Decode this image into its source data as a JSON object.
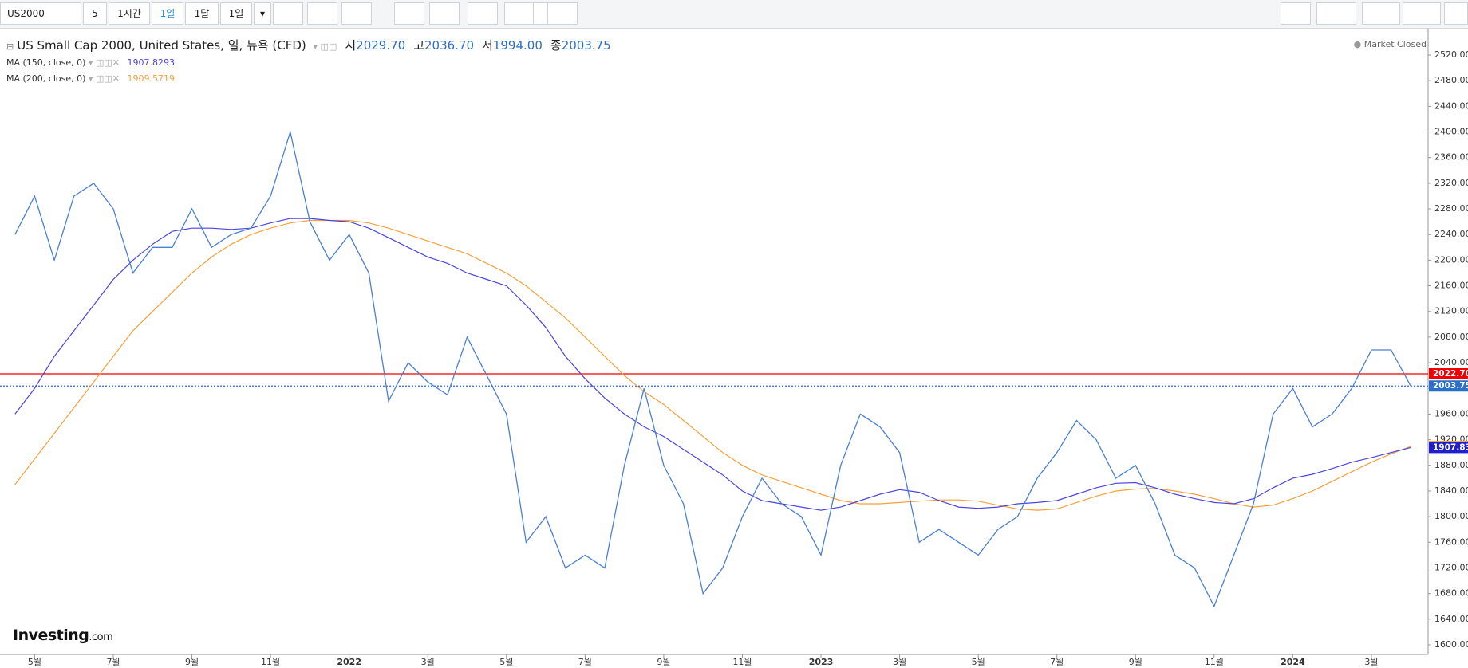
{
  "toolbar": {
    "symbol": "US2000",
    "buttons": [
      "5",
      "1시간",
      "1일",
      "1달",
      "1일"
    ],
    "selected": 2
  },
  "chart_data": {
    "type": "line",
    "ohlc": [
      {
        "label": "시",
        "value": "2029.70"
      },
      {
        "label": "고",
        "value": "2036.70"
      },
      {
        "label": "저",
        "value": "1994.00"
      },
      {
        "label": "종",
        "value": "2003.75"
      }
    ],
    "status": "Market Closed",
    "logo": {
      "name": "Investing",
      "suffix": ".com"
    },
    "categories": [
      null,
      "5월",
      null,
      null,
      null,
      "7월",
      null,
      null,
      null,
      "9월",
      null,
      null,
      null,
      "11월",
      null,
      null,
      null,
      "2022",
      null,
      null,
      null,
      "3월",
      null,
      null,
      null,
      "5월",
      null,
      null,
      null,
      "7월",
      null,
      null,
      null,
      "9월",
      null,
      null,
      null,
      "11월",
      null,
      null,
      null,
      "2023",
      null,
      null,
      null,
      "3월",
      null,
      null,
      null,
      "5월",
      null,
      null,
      null,
      "7월",
      null,
      null,
      null,
      "9월",
      null,
      null,
      null,
      "11월",
      null,
      null,
      null,
      "2024",
      null,
      null,
      null,
      "3월",
      null,
      null
    ],
    "series": [
      {
        "name": "US Small Cap 2000, United States, 일, 뉴욕 (CFD)",
        "color": "#4a7fd4",
        "values": [
          2240,
          2300,
          2200,
          2300,
          2320,
          2280,
          2180,
          2220,
          2220,
          2280,
          2220,
          2240,
          2250,
          2300,
          2400,
          2260,
          2200,
          2240,
          2180,
          1980,
          2040,
          2010,
          1990,
          2080,
          2020,
          1960,
          1760,
          1800,
          1720,
          1740,
          1720,
          1880,
          2000,
          1880,
          1820,
          1680,
          1720,
          1800,
          1860,
          1820,
          1800,
          1740,
          1880,
          1960,
          1940,
          1900,
          1760,
          1780,
          1760,
          1740,
          1780,
          1800,
          1860,
          1900,
          1950,
          1920,
          1860,
          1880,
          1820,
          1740,
          1720,
          1660,
          1740,
          1820,
          1960,
          2000,
          1940,
          1960,
          2000,
          2060,
          2060,
          2003.75
        ]
      },
      {
        "name": "MA (150, close, 0)",
        "legend_value": "1907.8293",
        "color": "#4b45e0",
        "values": [
          1960,
          2000,
          2050,
          2090,
          2130,
          2170,
          2200,
          2225,
          2245,
          2250,
          2250,
          2248,
          2250,
          2258,
          2265,
          2265,
          2262,
          2260,
          2250,
          2235,
          2220,
          2205,
          2195,
          2180,
          2170,
          2160,
          2130,
          2095,
          2050,
          2015,
          1985,
          1960,
          1940,
          1925,
          1905,
          1885,
          1865,
          1840,
          1825,
          1820,
          1815,
          1810,
          1815,
          1825,
          1835,
          1842,
          1838,
          1825,
          1815,
          1813,
          1815,
          1820,
          1822,
          1825,
          1835,
          1845,
          1852,
          1853,
          1845,
          1835,
          1828,
          1822,
          1820,
          1828,
          1845,
          1860,
          1866,
          1875,
          1885,
          1892,
          1900,
          1907.83
        ]
      },
      {
        "name": "MA (200, close, 0)",
        "legend_value": "1909.5719",
        "color": "#f5a23a",
        "values": [
          1850,
          1890,
          1930,
          1970,
          2010,
          2050,
          2090,
          2120,
          2150,
          2180,
          2205,
          2225,
          2240,
          2250,
          2258,
          2262,
          2262,
          2262,
          2258,
          2250,
          2240,
          2230,
          2220,
          2210,
          2195,
          2180,
          2160,
          2135,
          2110,
          2080,
          2050,
          2020,
          1995,
          1975,
          1950,
          1925,
          1900,
          1880,
          1865,
          1855,
          1845,
          1835,
          1825,
          1820,
          1820,
          1822,
          1824,
          1826,
          1826,
          1824,
          1818,
          1812,
          1810,
          1812,
          1822,
          1832,
          1840,
          1843,
          1844,
          1840,
          1835,
          1828,
          1820,
          1815,
          1818,
          1828,
          1840,
          1855,
          1870,
          1885,
          1898,
          1909.57
        ]
      }
    ],
    "price_lines": [
      {
        "value": 2022.7,
        "label": "2022.70",
        "color": "#f00000",
        "line": "solid"
      },
      {
        "value": 2003.75,
        "label": "2003.75",
        "color": "#2a6fc9",
        "line": "dotted"
      },
      {
        "value": 1909.57,
        "label": "1909.57",
        "color": "#f5a23a"
      },
      {
        "value": 1907.83,
        "label": "1907.83",
        "color": "#1f1fd0"
      }
    ],
    "ylim": [
      1600,
      2520
    ],
    "yticks": [
      {
        "value": 1600,
        "label": "1600.00"
      },
      {
        "value": 1640,
        "label": "1640.00"
      },
      {
        "value": 1680,
        "label": "1680.00"
      },
      {
        "value": 1720,
        "label": "1720.00"
      },
      {
        "value": 1760,
        "label": "1760.00"
      },
      {
        "value": 1800,
        "label": "1800.00"
      },
      {
        "value": 1840,
        "label": "1840.00"
      },
      {
        "value": 1880,
        "label": "1880.00"
      },
      {
        "value": 1920,
        "label": "1920.00"
      },
      {
        "value": 1960,
        "label": "1960.00"
      },
      {
        "value": 2000,
        "label": "2000.00"
      },
      {
        "value": 2040,
        "label": "2040.00"
      },
      {
        "value": 2080,
        "label": "2080.00"
      },
      {
        "value": 2120,
        "label": "2120.00"
      },
      {
        "value": 2160,
        "label": "2160.00"
      },
      {
        "value": 2200,
        "label": "2200.00"
      },
      {
        "value": 2240,
        "label": "2240.00"
      },
      {
        "value": 2280,
        "label": "2280.00"
      },
      {
        "value": 2320,
        "label": "2320.00"
      },
      {
        "value": 2360,
        "label": "2360.00"
      },
      {
        "value": 2400,
        "label": "2400.00"
      },
      {
        "value": 2440,
        "label": "2440.00"
      },
      {
        "value": 2480,
        "label": "2480.00"
      },
      {
        "value": 2520,
        "label": "2520.00"
      }
    ],
    "grid": false
  }
}
